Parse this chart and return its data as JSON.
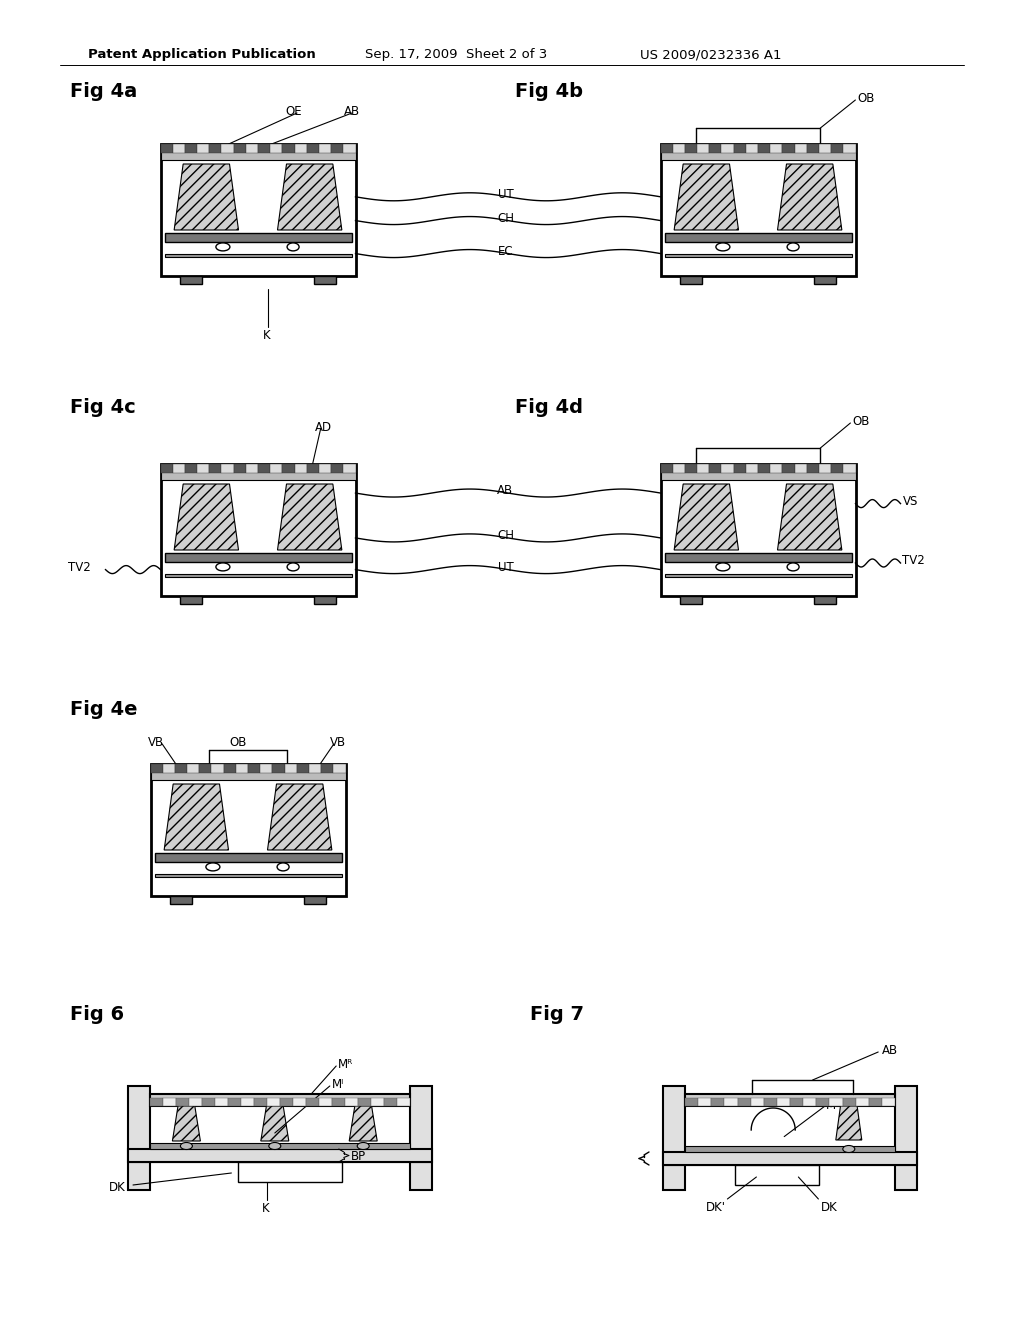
{
  "bg_color": "#ffffff",
  "header_left": "Patent Application Publication",
  "header_mid": "Sep. 17, 2009  Sheet 2 of 3",
  "header_right": "US 2009/0232336 A1",
  "lc": "#000000",
  "gray_dark": "#555555",
  "gray_mid": "#888888",
  "gray_light": "#cccccc",
  "gray_bar": "#aaaaaa",
  "gray_cell_dark": "#666666",
  "gray_cell_light": "#bbbbbb",
  "gray_foot": "#666666",
  "gray_bump_bar": "#777777",
  "gray_hatch": "#d0d0d0"
}
